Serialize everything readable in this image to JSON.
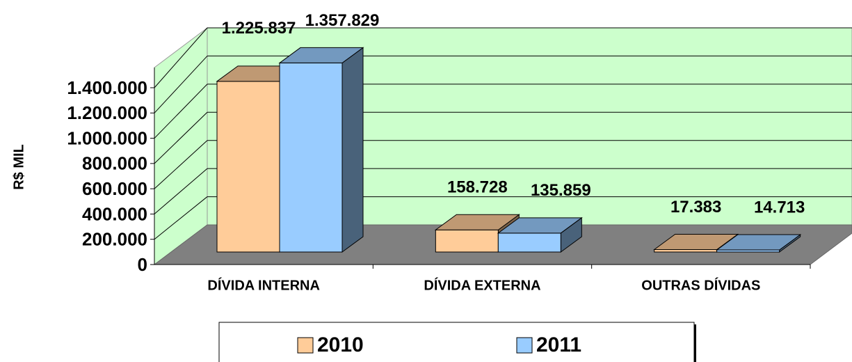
{
  "chart_data": {
    "type": "bar3d",
    "y_label": "R$ MIL",
    "categories": [
      "DÍVIDA INTERNA",
      "DÍVIDA EXTERNA",
      "OUTRAS DÍVIDAS"
    ],
    "series": [
      {
        "name": "2010",
        "color": "#ffcc99",
        "values": [
          1225837,
          158728,
          17383
        ],
        "value_labels": [
          "1.225.837",
          "158.728",
          "17.383"
        ]
      },
      {
        "name": "2011",
        "color": "#99ccff",
        "values": [
          1357829,
          135859,
          14713
        ],
        "value_labels": [
          "1.357.829",
          "135.859",
          "14.713"
        ]
      }
    ],
    "ylim": [
      0,
      1400000
    ],
    "yticks": [
      0,
      {
        "value": 200000,
        "label": "200.000"
      },
      {
        "value": 400000,
        "label": "400.000"
      },
      {
        "value": 600000,
        "label": "600.000"
      },
      {
        "value": 800000,
        "label": "800.000"
      },
      {
        "value": 1000000,
        "label": "1.000.000"
      },
      {
        "value": 1200000,
        "label": "1.200.000"
      },
      {
        "value": 1400000,
        "label": "1.400.000"
      }
    ],
    "grid": true,
    "wall_color": "#ccffcc",
    "floor_color": "#808080"
  }
}
